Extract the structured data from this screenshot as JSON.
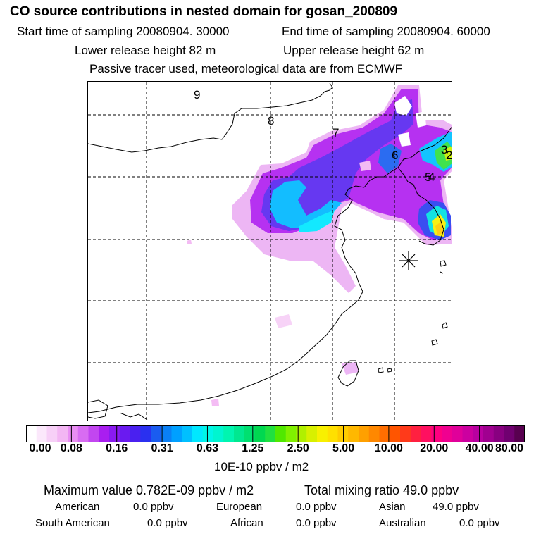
{
  "title": "CO  source contributions in nested domain for gosan_200809",
  "header": {
    "start_label": "Start time of sampling 20080904. 30000",
    "end_label": "End time of sampling 20080904. 60000",
    "lower_label": "Lower release height   82 m",
    "upper_label": "Upper release height   62 m",
    "tracer_label": "Passive tracer used, meteorological data are from ECMWF"
  },
  "map": {
    "trajectory_labels": [
      "9",
      "8",
      "7",
      "6",
      "5",
      "4",
      "3",
      "2"
    ],
    "receptor_marker": "asterisk"
  },
  "colorbar": {
    "tick_labels": [
      "0.00",
      "0.08",
      "0.16",
      "0.31",
      "0.63",
      "1.25",
      "2.50",
      "5.00",
      "10.00",
      "20.00",
      "40.00",
      "80.00"
    ],
    "colors": [
      "#ffffff",
      "#fbe8fb",
      "#f7d0f7",
      "#f3b6f3",
      "#e98ef3",
      "#d86cf2",
      "#c246f0",
      "#a91ef0",
      "#8a1af0",
      "#6a1af0",
      "#4a20f0",
      "#2a30f0",
      "#1a5cf0",
      "#0a80f5",
      "#00a0ff",
      "#00c0ff",
      "#00e8ff",
      "#00f5e8",
      "#00f5d0",
      "#00f5b0",
      "#00e890",
      "#00e070",
      "#00d850",
      "#20e040",
      "#50e800",
      "#80f000",
      "#b0f000",
      "#d8f000",
      "#f8f000",
      "#ffe000",
      "#ffcc00",
      "#ffb800",
      "#ffa000",
      "#ff8800",
      "#ff6e00",
      "#ff5500",
      "#ff3a1a",
      "#ff2040",
      "#ff1060",
      "#ff0080",
      "#f00090",
      "#e0009a",
      "#cc00a0",
      "#b800a0",
      "#a00090",
      "#880080",
      "#700070",
      "#580050"
    ],
    "units": "10E-10 ppbv / m2"
  },
  "stats": {
    "max_label": "Maximum value  0.782E-09 ppbv / m2",
    "total_label": "Total mixing ratio      49.0 ppbv"
  },
  "regions": [
    {
      "name": "American",
      "value": "0.0 ppbv"
    },
    {
      "name": "European",
      "value": "0.0 ppbv"
    },
    {
      "name": "Asian",
      "value": "49.0 ppbv"
    },
    {
      "name": "South American",
      "value": "0.0 ppbv"
    },
    {
      "name": "African",
      "value": "0.0 ppbv"
    },
    {
      "name": "Australian",
      "value": "0.0 ppbv"
    }
  ]
}
